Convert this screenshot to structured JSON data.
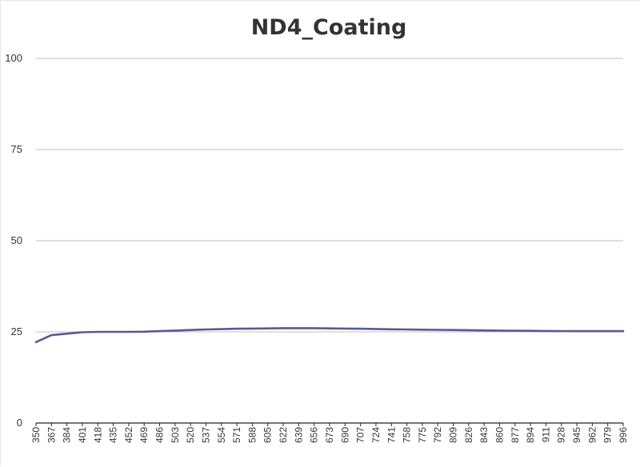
{
  "chart_data": {
    "type": "line",
    "title": "ND4_Coating",
    "xlabel": "",
    "ylabel": "",
    "ylim": [
      0,
      100
    ],
    "yticks": [
      0,
      25,
      50,
      75,
      100
    ],
    "grid": true,
    "categories": [
      "350",
      "367",
      "384",
      "401",
      "418",
      "435",
      "452",
      "469",
      "486",
      "503",
      "520",
      "537",
      "554",
      "571",
      "588",
      "605",
      "622",
      "639",
      "656",
      "673",
      "690",
      "707",
      "724",
      "741",
      "758",
      "775",
      "792",
      "809",
      "826",
      "843",
      "860",
      "877",
      "894",
      "911",
      "928",
      "945",
      "962",
      "979",
      "996"
    ],
    "series": [
      {
        "color": "#5a5a90",
        "values": [
          22.2,
          24.1,
          24.5,
          24.9,
          25.0,
          25.0,
          25.0,
          25.05,
          25.2,
          25.35,
          25.5,
          25.65,
          25.75,
          25.85,
          25.9,
          25.95,
          26.0,
          26.0,
          26.0,
          25.95,
          25.9,
          25.85,
          25.8,
          25.7,
          25.65,
          25.6,
          25.55,
          25.5,
          25.45,
          25.4,
          25.35,
          25.3,
          25.28,
          25.25,
          25.22,
          25.2,
          25.2,
          25.2,
          25.2
        ]
      }
    ]
  }
}
